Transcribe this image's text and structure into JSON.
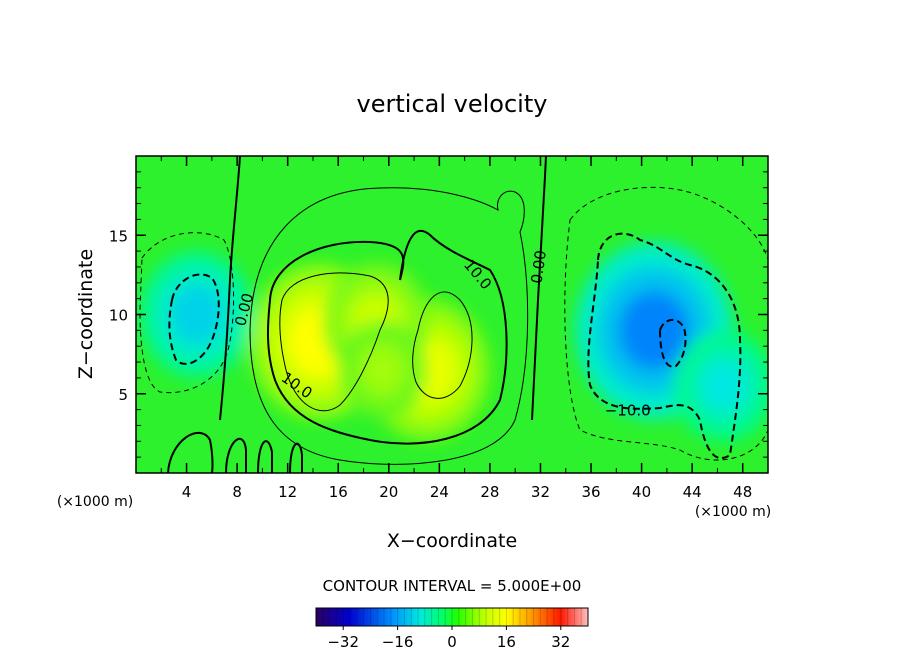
{
  "chart_data": {
    "type": "heatmap",
    "title": "vertical velocity",
    "xlabel": "X−coordinate",
    "ylabel": "Z−coordinate",
    "x_unit_left": "(×1000 m)",
    "x_unit_right": "(×1000 m)",
    "xlim": [
      0,
      50
    ],
    "ylim": [
      0,
      20
    ],
    "x_ticks": [
      4,
      8,
      12,
      16,
      20,
      24,
      28,
      32,
      36,
      40,
      44,
      48
    ],
    "y_ticks": [
      5,
      10,
      15
    ],
    "contour_interval_text": "CONTOUR INTERVAL = 5.000E+00",
    "contour_interval": 5.0,
    "contour_labels": [
      {
        "text": "0.00",
        "x": 8.6,
        "y": 10.3,
        "rotate": -75
      },
      {
        "text": "0.00",
        "x": 31.9,
        "y": 13.0,
        "rotate": -82
      },
      {
        "text": "10.0",
        "x": 27.0,
        "y": 12.5,
        "rotate": 50
      },
      {
        "text": "10.0",
        "x": 12.7,
        "y": 5.5,
        "rotate": 35
      },
      {
        "text": "−10.0",
        "x": 38.9,
        "y": 3.9,
        "rotate": 0
      }
    ],
    "field_features": [
      {
        "x": 14.5,
        "y": 8.3,
        "w": 16
      },
      {
        "x": 23.0,
        "y": 6.5,
        "w": 14
      },
      {
        "x": 19.0,
        "y": 9.5,
        "w": 11
      },
      {
        "x": 19.5,
        "y": 6.5,
        "w": 8
      },
      {
        "x": 41.0,
        "y": 9.0,
        "w": -19
      },
      {
        "x": 4.8,
        "y": 10.0,
        "w": -12
      },
      {
        "x": 46.5,
        "y": 5.5,
        "w": -10
      }
    ],
    "colorbar": {
      "ticks": [
        -32,
        -16,
        0,
        16,
        32
      ],
      "tick_labels": [
        "−32",
        "−16",
        "0",
        "16",
        "32"
      ],
      "range": [
        -40,
        40
      ],
      "colors": [
        "#1a006e",
        "#0000ff",
        "#00c8ff",
        "#00ff80",
        "#00ff00",
        "#c8ff00",
        "#ffff00",
        "#ff8000",
        "#ff0000",
        "#ffc8c8"
      ]
    }
  }
}
